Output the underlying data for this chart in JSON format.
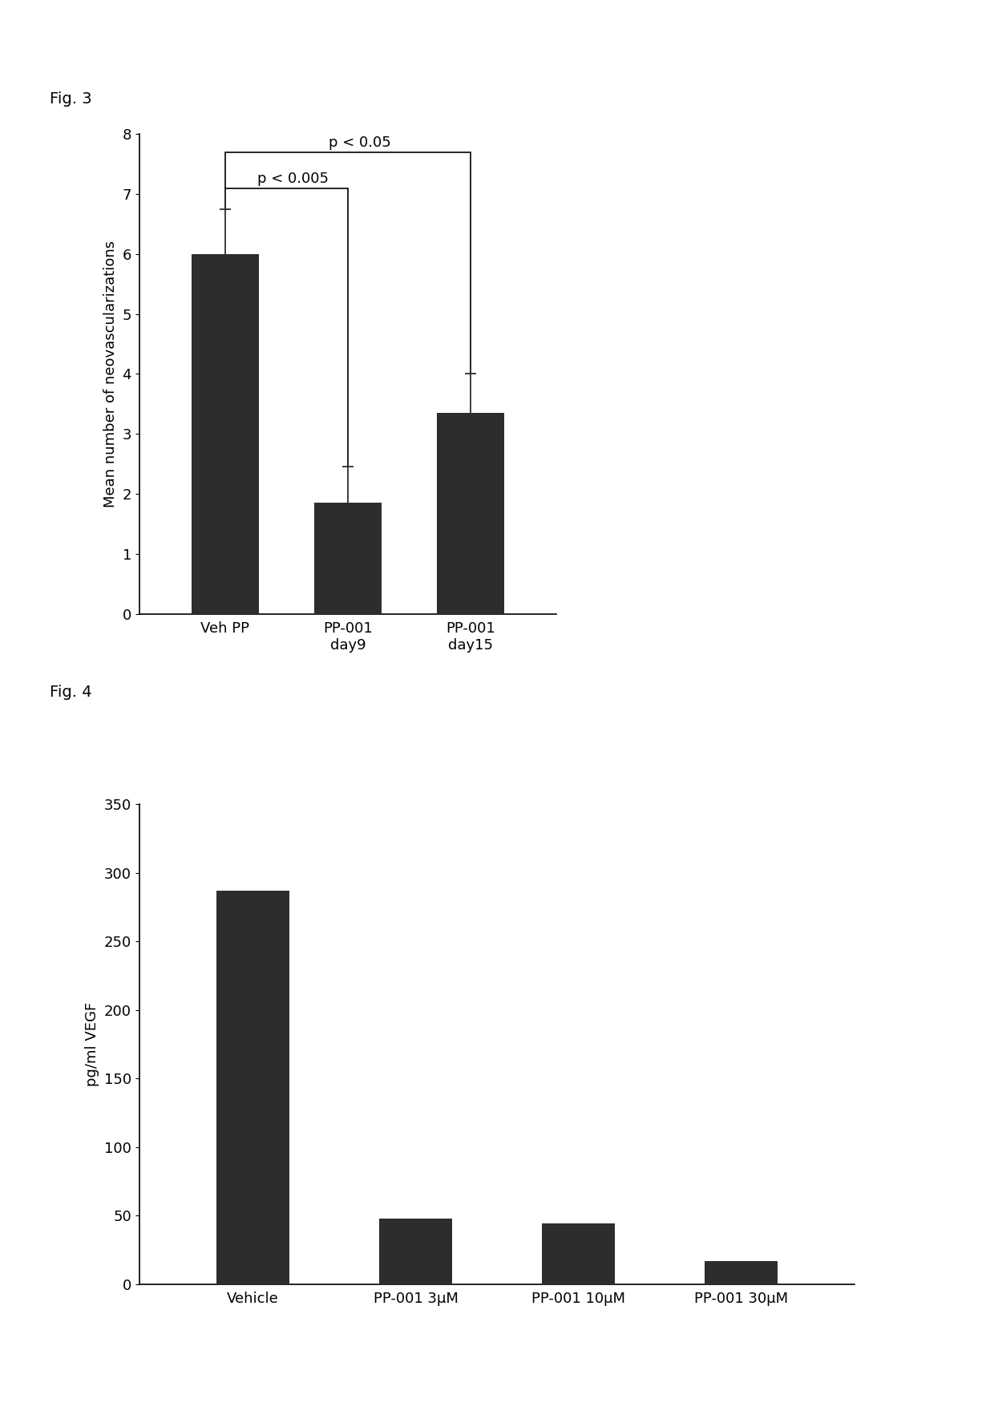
{
  "fig3": {
    "categories": [
      "Veh PP",
      "PP-001\nday9",
      "PP-001\nday15"
    ],
    "values": [
      6.0,
      1.85,
      3.35
    ],
    "errors": [
      0.75,
      0.6,
      0.65
    ],
    "ylabel": "Mean number of neovascularizations",
    "ylim": [
      0,
      8
    ],
    "yticks": [
      0,
      1,
      2,
      3,
      4,
      5,
      6,
      7,
      8
    ],
    "bar_color": "#2d2d2d",
    "fig_label": "Fig. 3",
    "annot1_text": "p < 0.005",
    "annot2_text": "p < 0.05"
  },
  "fig4": {
    "categories": [
      "Vehicle",
      "PP-001 3μM",
      "PP-001 10μM",
      "PP-001 30μM"
    ],
    "values": [
      287,
      48,
      44,
      17
    ],
    "ylabel": "pg/ml VEGF",
    "ylim": [
      0,
      350
    ],
    "yticks": [
      0,
      50,
      100,
      150,
      200,
      250,
      300,
      350
    ],
    "bar_color": "#2d2d2d",
    "fig_label": "Fig. 4"
  },
  "background_color": "#ffffff",
  "font_size": 13
}
